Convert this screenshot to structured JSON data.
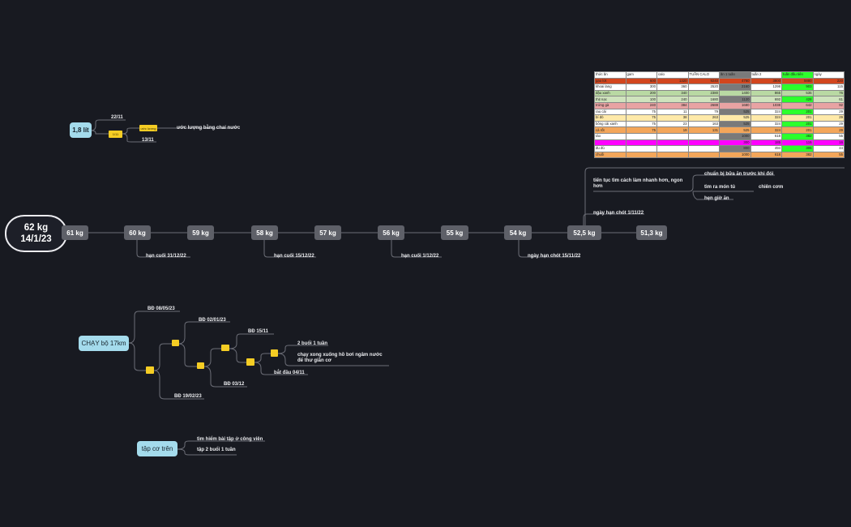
{
  "root": {
    "line1": "62 kg",
    "line2": "14/1/23"
  },
  "weights": [
    "61 kg",
    "60 kg",
    "59 kg",
    "58 kg",
    "57 kg",
    "56 kg",
    "55 kg",
    "54 kg",
    "52,5 kg",
    "51,3 kg"
  ],
  "deadlines": [
    "hạn cuối 31/12/22",
    "hạn cuối 15/12/22",
    "hạn cuối 1/12/22",
    "ngày hạn chót 15/11/22"
  ],
  "w525": {
    "deadline": "ngày hạn chót 1/11/22",
    "continue": "tiến tục tìm cách làm nhanh hơn, ngon hơn",
    "sub": [
      "chuẩn bị bữa ăn trước khi đói",
      "tìm ra món tủ",
      "hẹn giờ ăn"
    ],
    "sub2": "chiên cơm"
  },
  "water": {
    "title": "1,8 lít",
    "date1": "22/11",
    "date2": "13/11",
    "chip1": "1/11",
    "chip2": "ước lượng",
    "estimate": "ước lượng bằng chai nước"
  },
  "run": {
    "title": "CHẠY bộ 17km",
    "bd1": "BĐ 08/05/23",
    "bd2": "BĐ 02/01/23",
    "bd3": "BĐ 15/11",
    "bd4": "BĐ  03/12",
    "bd5": "BĐ 19/02/23",
    "n1": "2 buổi 1 tuần",
    "n2": "chạy xong xuống hồ bơi ngâm nước để thư giãn cơ",
    "n3": "bắt đầu 04/11",
    "chips": [
      "",
      "",
      "",
      "",
      "",
      ""
    ]
  },
  "upper": {
    "title": "tập cơ trên",
    "n1": "tìm hiểm bài tập ở công viên",
    "n2": "tập 2 buổi 1 tuần"
  },
  "food_table": {
    "rows": [
      {
        "cells": [
          "thức ăn",
          "gam",
          "calo",
          "TUẦN CALO",
          "ăn 1 tuần",
          "tuần 2",
          "tuần đầu tiên",
          "ngày"
        ],
        "bg": [
          "#ffffff",
          "#ffffff",
          "#ffffff",
          "#ffffff",
          "#7a7a7a",
          "#ffffff",
          "#2cff2c",
          "#ffffff"
        ]
      },
      {
        "cells": [
          "gạo lứt",
          "600",
          "1320",
          "9240",
          "4760",
          "3800",
          "5880",
          "220"
        ],
        "bg": [
          "#d2461e",
          "#d2461e",
          "#d2461e",
          "#d2461e",
          "#d2461e",
          "#d2461e",
          "#d2461e",
          "#d2461e"
        ]
      },
      {
        "cells": [
          "khoai lang",
          "300",
          "360",
          "2520",
          "2160",
          "1298",
          "903",
          "115"
        ],
        "bg": [
          "#ffffff",
          "#ffffff",
          "#ffffff",
          "#ffffff",
          "#7a7a7a",
          "#ffffff",
          "#2cff2c",
          "#ffffff"
        ]
      },
      {
        "cells": [
          "đậu xanh",
          "200",
          "340",
          "2380",
          "1400",
          "865",
          "535",
          "76"
        ],
        "bg": [
          "#b9d9a3",
          "#b9d9a3",
          "#b9d9a3",
          "#b9d9a3",
          "#b9d9a3",
          "#b9d9a3",
          "#b9d9a3",
          "#b9d9a3"
        ]
      },
      {
        "cells": [
          "thịt nạc",
          "100",
          "240",
          "1680",
          "1120",
          "692",
          "428",
          "61"
        ],
        "bg": [
          "#cfe3bd",
          "#cfe3bd",
          "#cfe3bd",
          "#cfe3bd",
          "#7a7a7a",
          "#cfe3bd",
          "#2cff2c",
          "#cfe3bd"
        ]
      },
      {
        "cells": [
          "trứng gà",
          "240",
          "384",
          "2688",
          "1680",
          "1038",
          "642",
          "92"
        ],
        "bg": [
          "#e8a3a3",
          "#e8a3a3",
          "#e8a3a3",
          "#e8a3a3",
          "#e8a3a3",
          "#e8a3a3",
          "#e8a3a3",
          "#e8a3a3"
        ]
      },
      {
        "cells": [
          "rau cải",
          "75",
          "11",
          "79",
          "525",
          "324",
          "201",
          "29"
        ],
        "bg": [
          "#ffffff",
          "#ffffff",
          "#ffffff",
          "#ffffff",
          "#7a7a7a",
          "#ffffff",
          "#2cff2c",
          "#ffffff"
        ]
      },
      {
        "cells": [
          "bí đỏ",
          "75",
          "38",
          "263",
          "525",
          "324",
          "201",
          "29"
        ],
        "bg": [
          "#ffe9a8",
          "#ffe9a8",
          "#ffe9a8",
          "#ffe9a8",
          "#ffe9a8",
          "#ffe9a8",
          "#ffe9a8",
          "#ffe9a8"
        ]
      },
      {
        "cells": [
          "bông cải xanh",
          "75",
          "23",
          "163",
          "525",
          "324",
          "201",
          "29"
        ],
        "bg": [
          "#ffffff",
          "#ffffff",
          "#ffffff",
          "#ffffff",
          "#7a7a7a",
          "#ffffff",
          "#2cff2c",
          "#ffffff"
        ]
      },
      {
        "cells": [
          "cà rốt",
          "75",
          "19",
          "131",
          "525",
          "324",
          "201",
          "29"
        ],
        "bg": [
          "#f3a65a",
          "#f3a65a",
          "#f3a65a",
          "#f3a65a",
          "#f3a65a",
          "#f3a65a",
          "#f3a65a",
          "#f3a65a"
        ]
      },
      {
        "cells": [
          "táo",
          "",
          "",
          "",
          "1000",
          "618",
          "382",
          "55"
        ],
        "bg": [
          "#ffffff",
          "#ffffff",
          "#ffffff",
          "#ffffff",
          "#7a7a7a",
          "#ffffff",
          "#2cff2c",
          "#ffffff"
        ]
      },
      {
        "cells": [
          "",
          "",
          "",
          "",
          "300",
          "185",
          "115",
          "16"
        ],
        "bg": [
          "#ff00ff",
          "#ff00ff",
          "#ff00ff",
          "#ff00ff",
          "#ff00ff",
          "#ff00ff",
          "#ff00ff",
          "#ff00ff"
        ]
      },
      {
        "cells": [
          "đu đủ",
          "",
          "",
          "",
          "800",
          "494",
          "306",
          "44"
        ],
        "bg": [
          "#ffffff",
          "#ffffff",
          "#ffffff",
          "#ffffff",
          "#7a7a7a",
          "#ffffff",
          "#2cff2c",
          "#ffffff"
        ]
      },
      {
        "cells": [
          "chuối",
          "",
          "",
          "",
          "1000",
          "618",
          "382",
          "55"
        ],
        "bg": [
          "#f3a65a",
          "#f3a65a",
          "#f3a65a",
          "#f3a65a",
          "#f3a65a",
          "#f3a65a",
          "#f3a65a",
          "#f3a65a"
        ]
      }
    ]
  }
}
